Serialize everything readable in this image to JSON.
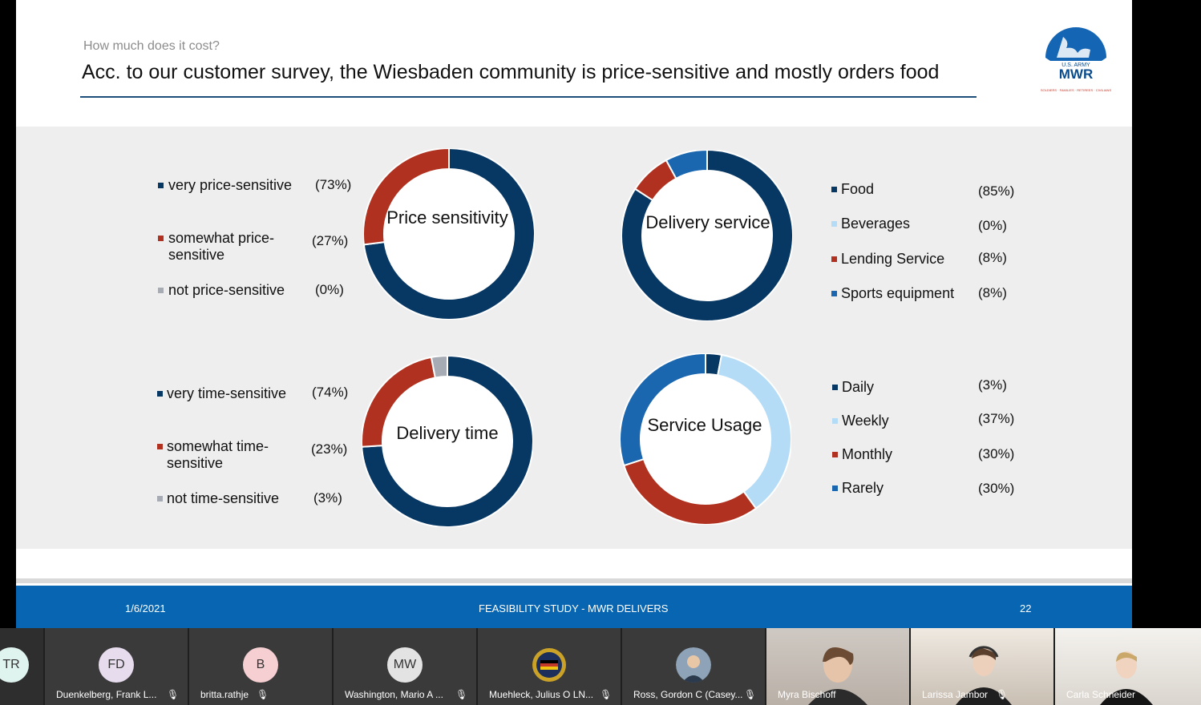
{
  "slide": {
    "kicker": "How much does it cost?",
    "headline": "Acc. to our customer survey, the Wiesbaden community is price-sensitive and mostly orders food",
    "logo": {
      "top": "U.S. ARMY",
      "main": "MWR",
      "ring": "SOLDIERS · FAMILIES · RETIREES · CIVILIANS"
    },
    "footer": {
      "date": "1/6/2021",
      "title": "FEASIBILITY STUDY - MWR DELIVERS",
      "page": "22"
    }
  },
  "chart_data": [
    {
      "type": "pie",
      "title": "Price sensitivity",
      "categories": [
        "very price-sensitive",
        "somewhat price-sensitive",
        "not price-sensitive"
      ],
      "values": [
        73,
        27,
        0
      ],
      "value_labels": [
        "(73%)",
        "(27%)",
        "(0%)"
      ],
      "colors": [
        "#073763",
        "#b0311f",
        "#a6abb4"
      ]
    },
    {
      "type": "pie",
      "title": "Delivery service",
      "categories": [
        "Food",
        "Beverages",
        "Lending Service",
        "Sports equipment"
      ],
      "values": [
        85,
        0,
        8,
        8
      ],
      "value_labels": [
        "(85%)",
        "(0%)",
        "(8%)",
        "(8%)"
      ],
      "colors": [
        "#073763",
        "#b4dcf7",
        "#b0311f",
        "#1a67b0"
      ]
    },
    {
      "type": "pie",
      "title": "Delivery time",
      "categories": [
        "very time-sensitive",
        "somewhat time-sensitive",
        "not time-sensitive"
      ],
      "values": [
        74,
        23,
        3
      ],
      "value_labels": [
        "(74%)",
        "(23%)",
        "(3%)"
      ],
      "colors": [
        "#073763",
        "#b0311f",
        "#a6abb4"
      ]
    },
    {
      "type": "pie",
      "title": "Service Usage",
      "categories": [
        "Daily",
        "Weekly",
        "Monthly",
        "Rarely"
      ],
      "values": [
        3,
        37,
        30,
        30
      ],
      "value_labels": [
        "(3%)",
        "(37%)",
        "(30%)",
        "(30%)"
      ],
      "colors": [
        "#073763",
        "#b4dcf7",
        "#b0311f",
        "#1a67b0"
      ]
    }
  ],
  "participants": [
    {
      "initials": "TR",
      "name": ""
    },
    {
      "initials": "FD",
      "name": "Duenkelberg, Frank L..."
    },
    {
      "initials": "B",
      "name": "britta.rathje"
    },
    {
      "initials": "MW",
      "name": "Washington, Mario A ..."
    },
    {
      "initials": "",
      "name": "Muehleck, Julius O LN..."
    },
    {
      "initials": "",
      "name": "Ross, Gordon C (Casey..."
    },
    {
      "initials": "",
      "name": "Myra Bischoff"
    },
    {
      "initials": "",
      "name": "Larissa Jambor"
    },
    {
      "initials": "",
      "name": "Carla Schneider"
    }
  ]
}
